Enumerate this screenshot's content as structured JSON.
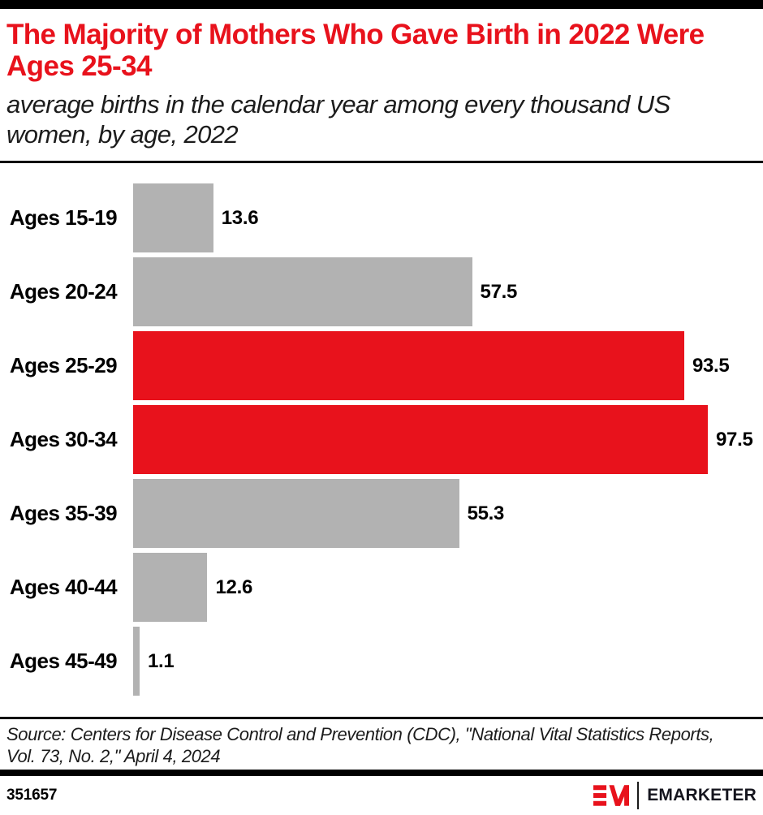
{
  "colors": {
    "accent_red": "#e8121c",
    "bar_gray": "#b2b2b2",
    "divider_black": "#000000",
    "brand_dark": "#15151e"
  },
  "header": {
    "title": "The Majority of Mothers Who Gave Birth in 2022 Were Ages 25-34",
    "subtitle": "average births in the calendar year among every thousand US women, by age, 2022"
  },
  "chart_data": {
    "type": "bar",
    "orientation": "horizontal",
    "title": "The Majority of Mothers Who Gave Birth in 2022 Were Ages 25-34",
    "subtitle": "average births in the calendar year among every thousand US women, by age, 2022",
    "xlabel": "",
    "ylabel": "",
    "xlim": [
      0,
      100
    ],
    "grid": false,
    "legend": false,
    "categories": [
      "Ages 15-19",
      "Ages 20-24",
      "Ages 25-29",
      "Ages 30-34",
      "Ages 35-39",
      "Ages 40-44",
      "Ages 45-49"
    ],
    "values": [
      13.6,
      57.5,
      93.5,
      97.5,
      55.3,
      12.6,
      1.1
    ],
    "value_labels": [
      "13.6",
      "57.5",
      "93.5",
      "97.5",
      "55.3",
      "12.6",
      "1.1"
    ],
    "bar_colors": [
      "#b2b2b2",
      "#b2b2b2",
      "#e8121c",
      "#e8121c",
      "#b2b2b2",
      "#b2b2b2",
      "#b2b2b2"
    ],
    "highlighted_categories": [
      "Ages 25-29",
      "Ages 30-34"
    ]
  },
  "source": {
    "text": "Source: Centers for Disease Control and Prevention (CDC), \"National Vital Statistics Reports, Vol. 73, No. 2,\" April 4, 2024"
  },
  "footer": {
    "chart_id": "351657",
    "logo_monogram": "EM",
    "wordmark": "EMARKETER"
  }
}
